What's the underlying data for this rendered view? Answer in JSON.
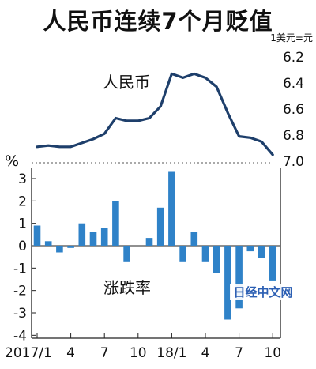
{
  "title": "人民币连续7个月贬值",
  "watermark": "日经中文网",
  "chart_data": [
    {
      "type": "line",
      "series_label": "人民币",
      "unit_label": "1美元=元",
      "y_inverted": true,
      "ylim": [
        6.2,
        7.0
      ],
      "yticks": [
        "6.2",
        "6.4",
        "6.6",
        "6.8",
        "7.0"
      ],
      "x": [
        "2017/1",
        "2017/2",
        "2017/3",
        "2017/4",
        "2017/5",
        "2017/6",
        "2017/7",
        "2017/8",
        "2017/9",
        "2017/10",
        "2017/11",
        "2017/12",
        "2018/1",
        "2018/2",
        "2018/3",
        "2018/4",
        "2018/5",
        "2018/6",
        "2018/7",
        "2018/8",
        "2018/9",
        "2018/10"
      ],
      "values": [
        6.89,
        6.88,
        6.89,
        6.89,
        6.86,
        6.83,
        6.79,
        6.67,
        6.69,
        6.69,
        6.67,
        6.58,
        6.33,
        6.36,
        6.33,
        6.36,
        6.43,
        6.63,
        6.81,
        6.82,
        6.85,
        6.95
      ],
      "line_color": "#1e3f6b"
    },
    {
      "type": "bar",
      "series_label": "涨跌率",
      "unit_label": "%",
      "ylim": [
        -4,
        3.5
      ],
      "yticks": [
        "3",
        "2",
        "1",
        "0",
        "-1",
        "-2",
        "-3",
        "-4"
      ],
      "categories": [
        "2017/1",
        "2017/2",
        "2017/3",
        "2017/4",
        "2017/5",
        "2017/6",
        "2017/7",
        "2017/8",
        "2017/9",
        "2017/10",
        "2017/11",
        "2017/12",
        "2018/1",
        "2018/2",
        "2018/3",
        "2018/4",
        "2018/5",
        "2018/6",
        "2018/7",
        "2018/8",
        "2018/9",
        "2018/10"
      ],
      "values": [
        0.9,
        0.2,
        -0.3,
        -0.1,
        1.0,
        0.6,
        0.8,
        2.0,
        -0.7,
        0.0,
        0.35,
        1.7,
        3.3,
        -0.7,
        0.6,
        -0.7,
        -1.2,
        -3.3,
        -2.8,
        -0.25,
        -0.55,
        -1.55
      ],
      "bar_color": "#2f82c8",
      "xtick_labels": [
        "2017/1",
        "4",
        "7",
        "10",
        "18/1",
        "4",
        "7",
        "10"
      ],
      "xtick_categories": [
        "2017/1",
        "2017/4",
        "2017/7",
        "2017/10",
        "2018/1",
        "2018/4",
        "2018/7",
        "2018/10"
      ]
    }
  ]
}
